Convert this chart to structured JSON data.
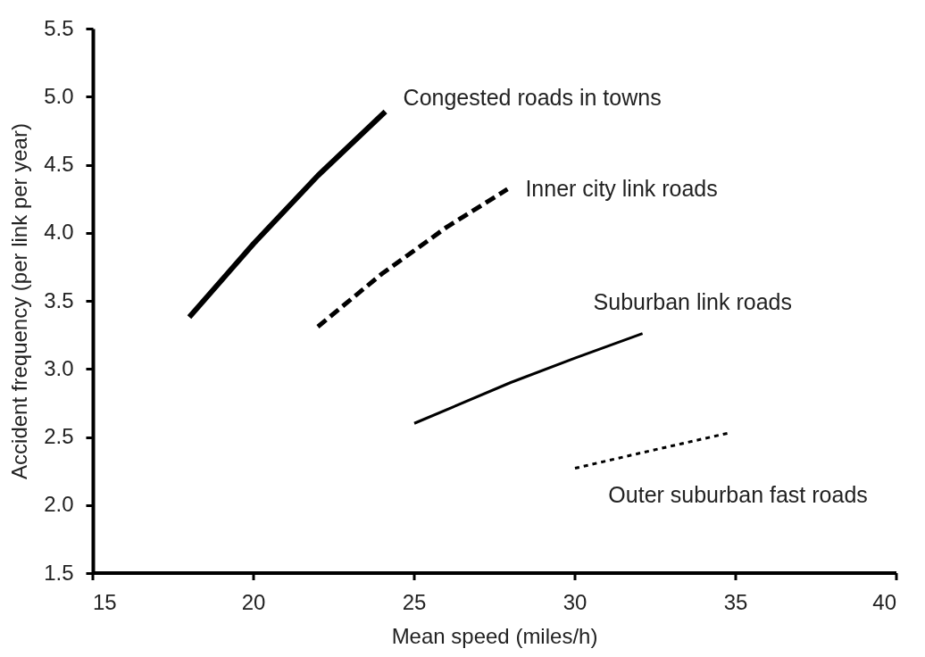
{
  "chart_data": {
    "type": "line",
    "xlabel": "Mean speed  (miles/h)",
    "ylabel": "Accident frequency (per link per year)",
    "xlim": [
      15,
      40
    ],
    "xticks": [
      15,
      20,
      25,
      30,
      35,
      40
    ],
    "ylim": [
      1.5,
      5.5
    ],
    "yticks": [
      {
        "value": 1.5,
        "label": "1.5"
      },
      {
        "value": 2.0,
        "label": "2.0"
      },
      {
        "value": 2.5,
        "label": "2.5"
      },
      {
        "value": 3.0,
        "label": "3.0"
      },
      {
        "value": 3.5,
        "label": "3.5"
      },
      {
        "value": 4.0,
        "label": "4.0"
      },
      {
        "value": 4.5,
        "label": "4.5"
      },
      {
        "value": 5.0,
        "label": "5.0"
      },
      {
        "value": 5.5,
        "label": "5.5"
      }
    ],
    "grid": false,
    "marker": "none",
    "series": [
      {
        "name": "Congested roads in towns",
        "color": "#000000",
        "line_style": "solid",
        "x": [
          18,
          20,
          22,
          24.1
        ],
        "values": [
          3.38,
          3.92,
          4.42,
          4.89
        ]
      },
      {
        "name": "Inner city link roads",
        "color": "#000000",
        "line_style": "dashed",
        "x": [
          22,
          24,
          26,
          27.9
        ],
        "values": [
          3.31,
          3.7,
          4.04,
          4.32
        ]
      },
      {
        "name": "Suburban link roads",
        "color": "#000000",
        "line_style": "solid",
        "x": [
          25,
          28,
          30,
          32.1
        ],
        "values": [
          2.6,
          2.9,
          3.08,
          3.26
        ]
      },
      {
        "name": "Outer suburban fast roads",
        "color": "#000000",
        "line_style": "dotted",
        "x": [
          30,
          32,
          34.8
        ],
        "values": [
          2.27,
          2.38,
          2.53
        ]
      }
    ]
  }
}
